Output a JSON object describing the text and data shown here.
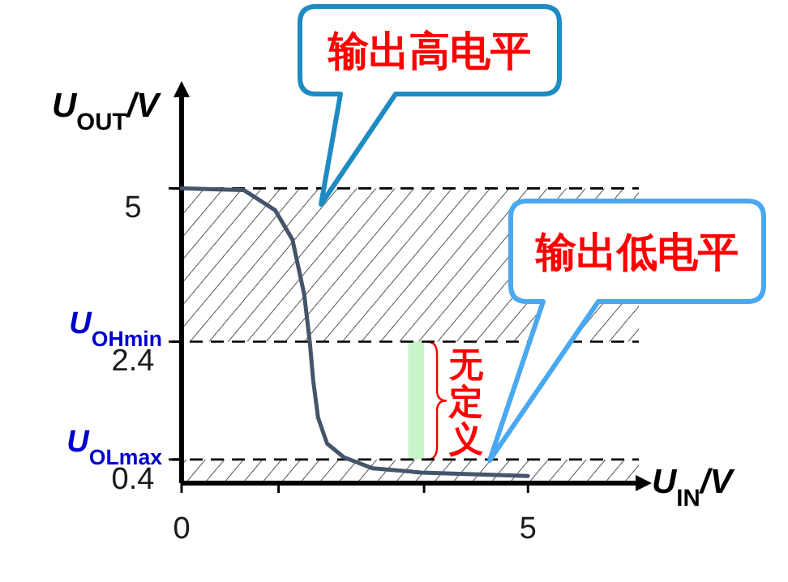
{
  "chart_data": {
    "type": "line",
    "xlabel": "U$_{IN}$/V",
    "ylabel": "U$_{OUT}$/V",
    "x": [
      0,
      0.9,
      1.35,
      1.6,
      1.77,
      1.85,
      1.9,
      1.97,
      2.1,
      2.34,
      2.76,
      3.46,
      5
    ],
    "series": [
      {
        "color": "#44546a",
        "values": [
          5,
          4.97,
          4.63,
          4.13,
          3.2,
          2.4,
          1.74,
          1.11,
          0.67,
          0.44,
          0.25,
          0.18,
          0.12
        ]
      }
    ],
    "line_style": "solid",
    "xlim": [
      0,
      6.6
    ],
    "ylim": [
      0,
      6.6
    ],
    "xticks": [
      0,
      {
        "value": 1.4,
        "label": null
      },
      {
        "value": 3.5,
        "label": null
      },
      5
    ],
    "yticks": [
      0.4,
      2.4,
      5
    ],
    "ref_lines": [
      {
        "axis": "y",
        "value": 5,
        "line_style": "dashed",
        "color": "#000000"
      },
      {
        "axis": "y",
        "value": 2.4,
        "label": "U$_{OHmin}$",
        "line_style": "dashed",
        "color": "#000000"
      },
      {
        "axis": "y",
        "value": 0.4,
        "label": "U$_{OLmax}$",
        "line_style": "dashed",
        "color": "#000000"
      }
    ],
    "bands": [
      {
        "axis": "y",
        "from": 2.4,
        "to": 5,
        "color": "#555555"
      },
      {
        "axis": "y",
        "from": 0,
        "to": 0.4,
        "color": "#555555"
      },
      {
        "axis": "x",
        "from": 3.27,
        "to": 3.5,
        "color": "#c8f5c8"
      }
    ],
    "annotations": [
      "输出高电平",
      "输出低电平",
      {
        "text": "无定义",
        "x": 3.5,
        "y": 1.4
      }
    ]
  }
}
